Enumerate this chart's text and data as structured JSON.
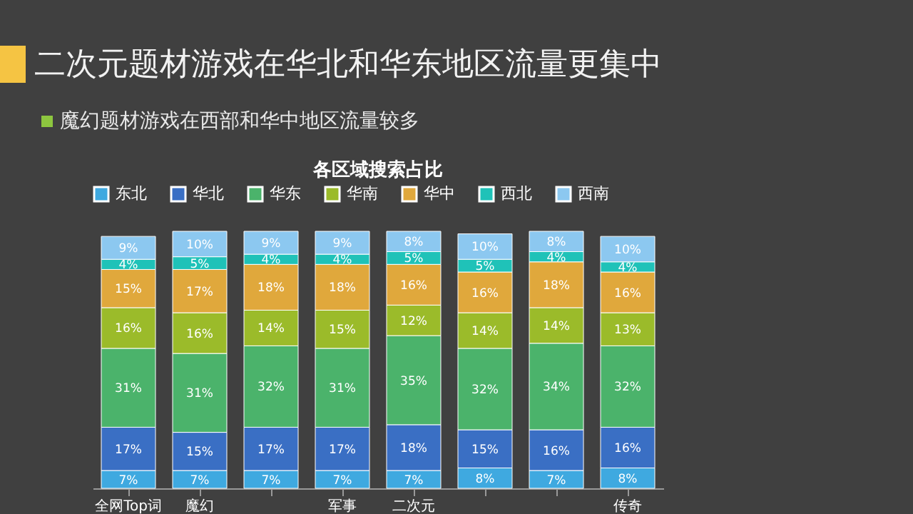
{
  "chart_data": {
    "type": "bar",
    "stacked": true,
    "legend": "top",
    "title": "二次元题材游戏在华北和华东地区流量更集中",
    "subtitle": "魔幻题材游戏在西部和华中地区流量较多",
    "annotations": [
      "各区域搜索占比"
    ],
    "categories": [
      "全网Top词",
      "魔幻",
      null,
      "军事",
      "二次元",
      null,
      null,
      "传奇"
    ],
    "series": [
      {
        "name": "东北",
        "color": "#3fa9e0",
        "values": [
          7,
          7,
          7,
          7,
          7,
          8,
          7,
          8
        ],
        "value_labels": [
          "7%",
          "7%",
          "7%",
          "7%",
          "7%",
          "8%",
          "7%",
          "8%"
        ]
      },
      {
        "name": "华北",
        "color": "#3a6fc4",
        "values": [
          17,
          15,
          17,
          17,
          18,
          15,
          16,
          16
        ],
        "value_labels": [
          "17%",
          "15%",
          "17%",
          "17%",
          "18%",
          "15%",
          "16%",
          "16%"
        ]
      },
      {
        "name": "华东",
        "color": "#4bb36b",
        "values": [
          31,
          31,
          32,
          31,
          35,
          32,
          34,
          32
        ],
        "value_labels": [
          "31%",
          "31%",
          "32%",
          "31%",
          "35%",
          "32%",
          "34%",
          "32%"
        ]
      },
      {
        "name": "华南",
        "color": "#9bbb2a",
        "values": [
          16,
          16,
          14,
          15,
          12,
          14,
          14,
          13
        ],
        "value_labels": [
          "16%",
          "16%",
          "14%",
          "15%",
          "12%",
          "14%",
          "14%",
          "13%"
        ]
      },
      {
        "name": "华中",
        "color": "#e0a83c",
        "values": [
          15,
          17,
          18,
          18,
          16,
          16,
          18,
          16
        ],
        "value_labels": [
          "15%",
          "17%",
          "18%",
          "18%",
          "16%",
          "16%",
          "18%",
          "16%"
        ]
      },
      {
        "name": "西北",
        "color": "#1fc2b8",
        "values": [
          4,
          5,
          4,
          4,
          5,
          5,
          4,
          4
        ],
        "value_labels": [
          "4%",
          "5%",
          "4%",
          "4%",
          "5%",
          "5%",
          "4%",
          "4%"
        ]
      },
      {
        "name": "西南",
        "color": "#8cc8f0",
        "values": [
          9,
          10,
          9,
          9,
          8,
          10,
          8,
          10
        ],
        "value_labels": [
          "9%",
          "10%",
          "9%",
          "9%",
          "8%",
          "10%",
          "8%",
          "10%"
        ]
      }
    ]
  }
}
